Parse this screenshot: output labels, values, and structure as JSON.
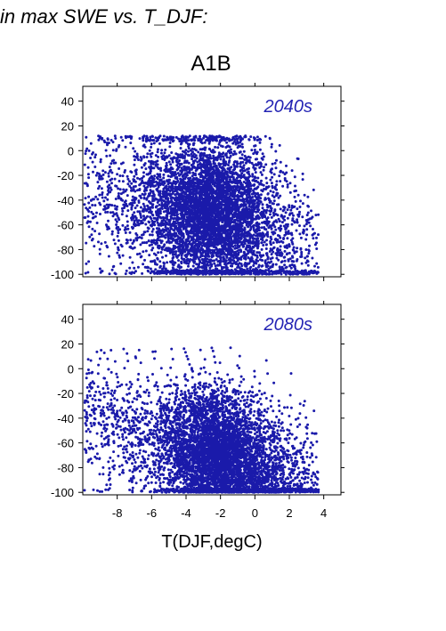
{
  "heading": "in max SWE vs. T_DJF:",
  "scenario": "A1B",
  "colors": {
    "points": "#1a1aaa",
    "panel_label": "#2424b4",
    "axes": "#000000"
  },
  "chart_data": [
    {
      "type": "scatter",
      "panel_label": "2040s",
      "xlabel": "",
      "ylabel": "",
      "xlim": [
        -10,
        5
      ],
      "ylim": [
        -102,
        52
      ],
      "xticks": [
        -8,
        -6,
        -4,
        -2,
        0,
        2,
        4
      ],
      "yticks": [
        40,
        20,
        0,
        -20,
        -40,
        -60,
        -80,
        -100
      ],
      "ytick_labels": [
        "40",
        "20",
        "0",
        "-20",
        "-40",
        "-60",
        "-80",
        "-100"
      ],
      "show_xtick_labels": false,
      "grid": false,
      "series": [
        {
          "n_points": 6000,
          "x_center": -2.6,
          "x_spread": 1.9,
          "x_range": [
            -9.9,
            3.7
          ],
          "y_center": -40,
          "y_spread": 34,
          "y_range": [
            -100,
            12
          ],
          "trend_note_x": [
            -9,
            -6,
            -4,
            -2,
            0,
            2,
            3.5
          ],
          "trend_note_y": [
            -35,
            -45,
            -50,
            -50,
            -55,
            -75,
            -90
          ]
        }
      ]
    },
    {
      "type": "scatter",
      "panel_label": "2080s",
      "xlabel": "T(DJF,degC)",
      "ylabel": "",
      "xlim": [
        -10,
        5
      ],
      "ylim": [
        -102,
        52
      ],
      "xticks": [
        -8,
        -6,
        -4,
        -2,
        0,
        2,
        4
      ],
      "xtick_labels": [
        "-8",
        "-6",
        "-4",
        "-2",
        "0",
        "2",
        "4"
      ],
      "yticks": [
        40,
        20,
        0,
        -20,
        -40,
        -60,
        -80,
        -100
      ],
      "ytick_labels": [
        "40",
        "20",
        "0",
        "-20",
        "-40",
        "-60",
        "-80",
        "-100"
      ],
      "show_xtick_labels": true,
      "grid": false,
      "series": [
        {
          "n_points": 6000,
          "x_center": -2.0,
          "x_spread": 1.9,
          "x_range": [
            -9.9,
            3.7
          ],
          "y_center": -68,
          "y_spread": 30,
          "y_range": [
            -100,
            17
          ],
          "trend_note_x": [
            -9,
            -6,
            -4,
            -2,
            0,
            2,
            3.5
          ],
          "trend_note_y": [
            -40,
            -55,
            -65,
            -70,
            -80,
            -90,
            -97
          ]
        }
      ]
    }
  ]
}
